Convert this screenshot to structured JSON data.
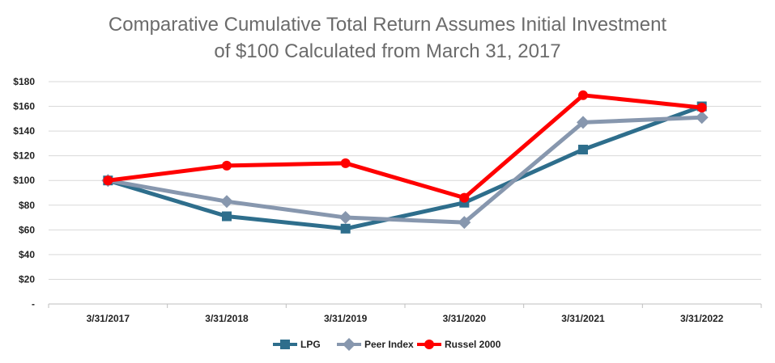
{
  "chart_data": {
    "type": "line",
    "title_line1": "Comparative Cumulative Total Return Assumes Initial Investment",
    "title_line2": "of $100 Calculated from March 31, 2017",
    "categories": [
      "3/31/2017",
      "3/31/2018",
      "3/31/2019",
      "3/31/2020",
      "3/31/2021",
      "3/31/2022"
    ],
    "y_ticks": [
      "-",
      "$20",
      "$40",
      "$60",
      "$80",
      "$100",
      "$120",
      "$140",
      "$160",
      "$180"
    ],
    "ylim": [
      0,
      180
    ],
    "grid": true,
    "legend_position": "bottom",
    "series": [
      {
        "name": "LPG",
        "color": "#2e6e8c",
        "marker": "square",
        "values": [
          100,
          71,
          61,
          82,
          125,
          160
        ]
      },
      {
        "name": "Peer Index",
        "color": "#8797ae",
        "marker": "diamond",
        "values": [
          100,
          83,
          70,
          66,
          147,
          151
        ]
      },
      {
        "name": "Russel 2000",
        "color": "#ff0000",
        "marker": "circle",
        "values": [
          100,
          112,
          114,
          86,
          169,
          159
        ]
      }
    ]
  }
}
